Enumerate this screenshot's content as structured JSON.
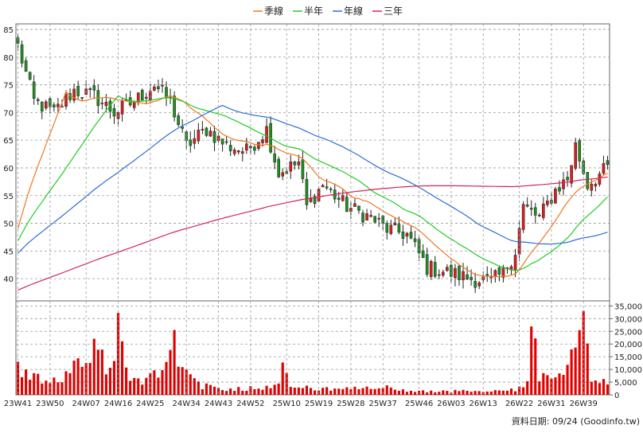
{
  "chart_data": {
    "type": "candlestick",
    "legend": {
      "placement": "top-center",
      "items": [
        {
          "name": "季線",
          "color": "#f07820"
        },
        {
          "name": "半年",
          "color": "#22cc22"
        },
        {
          "name": "年線",
          "color": "#2a6fd6"
        },
        {
          "name": "三年",
          "color": "#d6245a"
        }
      ]
    },
    "price_axis": {
      "ticks": [
        40,
        45,
        50,
        55,
        60,
        65,
        70,
        75,
        80,
        85
      ],
      "ylim": [
        36,
        86
      ],
      "position": "left"
    },
    "volume_axis": {
      "ticks": [
        "0",
        "5,000",
        "10,000",
        "15,000",
        "20,000",
        "25,000",
        "30,000",
        "35,000"
      ],
      "values": [
        0,
        5000,
        10000,
        15000,
        20000,
        25000,
        30000,
        35000
      ],
      "ylim": [
        0,
        37000
      ],
      "position": "right"
    },
    "x_ticks": [
      "23W41",
      "23W50",
      "24W07",
      "24W16",
      "24W25",
      "24W34",
      "24W43",
      "24W52",
      "25W10",
      "25W19",
      "25W28",
      "25W37",
      "25W46",
      "26W03",
      "26W13",
      "26W22",
      "26W31",
      "26W39"
    ],
    "grid": true,
    "candle_colors": {
      "up": "#d62020",
      "down": "#1f8f1f"
    },
    "volume_color": "#e00000",
    "footer": "資料日期: 09/24  (Goodinfo.tw)",
    "close_anchors": [
      [
        0,
        82
      ],
      [
        4,
        72
      ],
      [
        9,
        70
      ],
      [
        14,
        74
      ],
      [
        19,
        73
      ],
      [
        24,
        70
      ],
      [
        29,
        72
      ],
      [
        34,
        75
      ],
      [
        38,
        72
      ],
      [
        42,
        64
      ],
      [
        47,
        67
      ],
      [
        52,
        64
      ],
      [
        57,
        63
      ],
      [
        62,
        67
      ],
      [
        65,
        59
      ],
      [
        70,
        61
      ],
      [
        72,
        53
      ],
      [
        76,
        57
      ],
      [
        82,
        53
      ],
      [
        88,
        51
      ],
      [
        92,
        49
      ],
      [
        97,
        48
      ],
      [
        102,
        42
      ],
      [
        108,
        41
      ],
      [
        113,
        40
      ],
      [
        118,
        39.5
      ],
      [
        121,
        41
      ],
      [
        124,
        45
      ],
      [
        126,
        53
      ],
      [
        130,
        51
      ],
      [
        134,
        56
      ],
      [
        137,
        58
      ],
      [
        139,
        64
      ],
      [
        142,
        57
      ],
      [
        147,
        60
      ]
    ],
    "vol_anchors": [
      [
        0,
        10500
      ],
      [
        3,
        8500
      ],
      [
        6,
        5000
      ],
      [
        10,
        6000
      ],
      [
        13,
        9000
      ],
      [
        16,
        12000
      ],
      [
        18,
        15000
      ],
      [
        20,
        21000
      ],
      [
        23,
        9000
      ],
      [
        25,
        26000
      ],
      [
        27,
        8500
      ],
      [
        31,
        5000
      ],
      [
        34,
        9000
      ],
      [
        37,
        14000
      ],
      [
        39,
        22000
      ],
      [
        42,
        8000
      ],
      [
        46,
        3500
      ],
      [
        51,
        2000
      ],
      [
        56,
        2500
      ],
      [
        61,
        3000
      ],
      [
        65,
        5000
      ],
      [
        66,
        13000
      ],
      [
        68,
        3500
      ],
      [
        73,
        2500
      ],
      [
        80,
        2000
      ],
      [
        86,
        2500
      ],
      [
        92,
        2800
      ],
      [
        98,
        1500
      ],
      [
        104,
        1200
      ],
      [
        110,
        1500
      ],
      [
        116,
        1200
      ],
      [
        121,
        1500
      ],
      [
        124,
        2000
      ],
      [
        127,
        4000
      ],
      [
        128,
        26000
      ],
      [
        130,
        8000
      ],
      [
        134,
        5000
      ],
      [
        137,
        9000
      ],
      [
        139,
        27000
      ],
      [
        140,
        37000
      ],
      [
        141,
        36000
      ],
      [
        143,
        5000
      ],
      [
        147,
        6000
      ]
    ],
    "n_weeks": 148,
    "ma_windows": {
      "季線": 13,
      "半年": 26,
      "年線": 52,
      "三年": 156
    }
  }
}
